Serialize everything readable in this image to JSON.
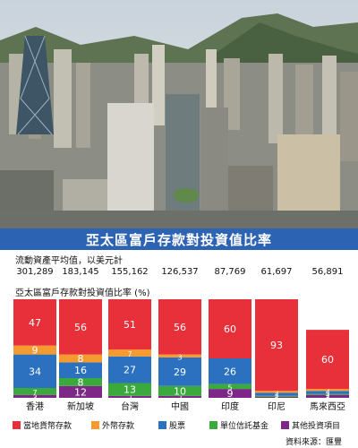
{
  "title": "亞太區富戶存款對投資值比率",
  "assets_caption": "流動資產平均值，以美元計",
  "ratio_caption": "亞太區富戶存款對投資值比率 (%)",
  "source": "資料來源：匯豐",
  "colors": {
    "title_bg": "#2d63b3",
    "local_deposits": "#e8303a",
    "foreign_deposits": "#f59a2e",
    "stocks": "#2c70c0",
    "unit_trusts": "#3aaa3d",
    "other_investments": "#7d2886"
  },
  "chart_data": {
    "type": "bar",
    "stacked": true,
    "unit": "%",
    "categories": [
      "香港",
      "新加坡",
      "台灣",
      "中國",
      "印度",
      "印尼",
      "馬來西亞"
    ],
    "liquid_assets_usd": [
      "301,289",
      "183,145",
      "155,162",
      "126,537",
      "87,769",
      "61,697",
      "56,891"
    ],
    "series": [
      {
        "name": "其他投資項目",
        "values": [
          3,
          12,
          2,
          2,
          9,
          1,
          3
        ]
      },
      {
        "name": "單位信託基金",
        "values": [
          7,
          8,
          13,
          10,
          5,
          1,
          1
        ]
      },
      {
        "name": "股票",
        "values": [
          34,
          16,
          27,
          29,
          26,
          3,
          3
        ]
      },
      {
        "name": "外幣存款",
        "values": [
          9,
          8,
          7,
          3,
          null,
          2,
          2
        ]
      },
      {
        "name": "當地貨幣存款",
        "values": [
          47,
          56,
          51,
          56,
          60,
          93,
          60
        ]
      }
    ],
    "legend": [
      "當地貨幣存款",
      "外幣存款",
      "股票",
      "單位信託基金",
      "其他投資項目"
    ],
    "legend_position": "bottom"
  }
}
